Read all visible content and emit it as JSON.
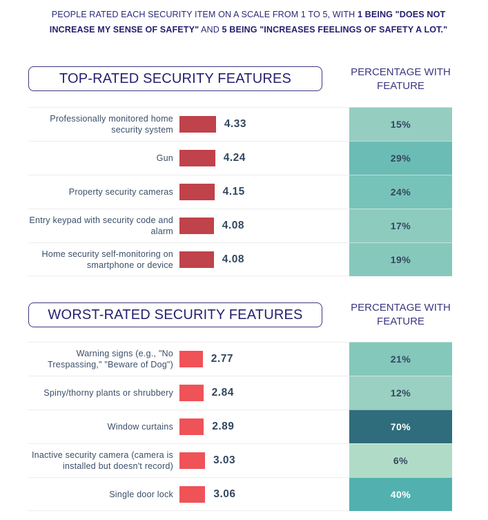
{
  "intro": {
    "part1": "PEOPLE RATED EACH SECURITY ITEM ON A SCALE FROM 1 TO 5, WITH ",
    "bold1": "1 BEING \"DOES NOT INCREASE MY SENSE OF SAFETY\"",
    "part2": " AND ",
    "bold2": "5 BEING \"INCREASES FEELINGS OF SAFETY A LOT.\""
  },
  "colors": {
    "top_bar": "#c0424a",
    "worst_bar": "#ef5257",
    "text_dark": "#32475f",
    "title_navy": "#231f6e"
  },
  "chart_data": [
    {
      "type": "table",
      "title": "TOP-RATED SECURITY FEATURES",
      "column_header": "PERCENTAGE WITH FEATURE",
      "scale": [
        1,
        5
      ],
      "rows": [
        {
          "label": "Professionally monitored home security system",
          "rating": 4.33,
          "rating_label": "4.33",
          "percent": 15,
          "percent_label": "15%",
          "cell_color": "#95cdc0",
          "text_color": "#33475f"
        },
        {
          "label": "Gun",
          "rating": 4.24,
          "rating_label": "4.24",
          "percent": 29,
          "percent_label": "29%",
          "cell_color": "#6cbcb6",
          "text_color": "#33475f"
        },
        {
          "label": "Property security cameras",
          "rating": 4.15,
          "rating_label": "4.15",
          "percent": 24,
          "percent_label": "24%",
          "cell_color": "#77c3b9",
          "text_color": "#33475f"
        },
        {
          "label": "Entry keypad with security code and alarm",
          "rating": 4.08,
          "rating_label": "4.08",
          "percent": 17,
          "percent_label": "17%",
          "cell_color": "#8dcbbe",
          "text_color": "#33475f"
        },
        {
          "label": "Home security self-monitoring on smartphone or device",
          "rating": 4.08,
          "rating_label": "4.08",
          "percent": 19,
          "percent_label": "19%",
          "cell_color": "#87c8bc",
          "text_color": "#33475f"
        }
      ]
    },
    {
      "type": "table",
      "title": "WORST-RATED SECURITY FEATURES",
      "column_header": "PERCENTAGE WITH FEATURE",
      "scale": [
        1,
        5
      ],
      "rows": [
        {
          "label": "Warning signs (e.g., \"No Trespassing,\" \"Beware of Dog\")",
          "rating": 2.77,
          "rating_label": "2.77",
          "percent": 21,
          "percent_label": "21%",
          "cell_color": "#84c7bb",
          "text_color": "#33475f"
        },
        {
          "label": "Spiny/thorny plants or shrubbery",
          "rating": 2.84,
          "rating_label": "2.84",
          "percent": 12,
          "percent_label": "12%",
          "cell_color": "#9ad0c1",
          "text_color": "#33475f"
        },
        {
          "label": "Window curtains",
          "rating": 2.89,
          "rating_label": "2.89",
          "percent": 70,
          "percent_label": "70%",
          "cell_color": "#2f6c7c",
          "text_color": "#ffffff"
        },
        {
          "label": "Inactive security camera (camera is installed but doesn't record)",
          "rating": 3.03,
          "rating_label": "3.03",
          "percent": 6,
          "percent_label": "6%",
          "cell_color": "#b0dcc7",
          "text_color": "#33475f"
        },
        {
          "label": "Single door lock",
          "rating": 3.06,
          "rating_label": "3.06",
          "percent": 40,
          "percent_label": "40%",
          "cell_color": "#52b1af",
          "text_color": "#ffffff"
        }
      ]
    }
  ]
}
